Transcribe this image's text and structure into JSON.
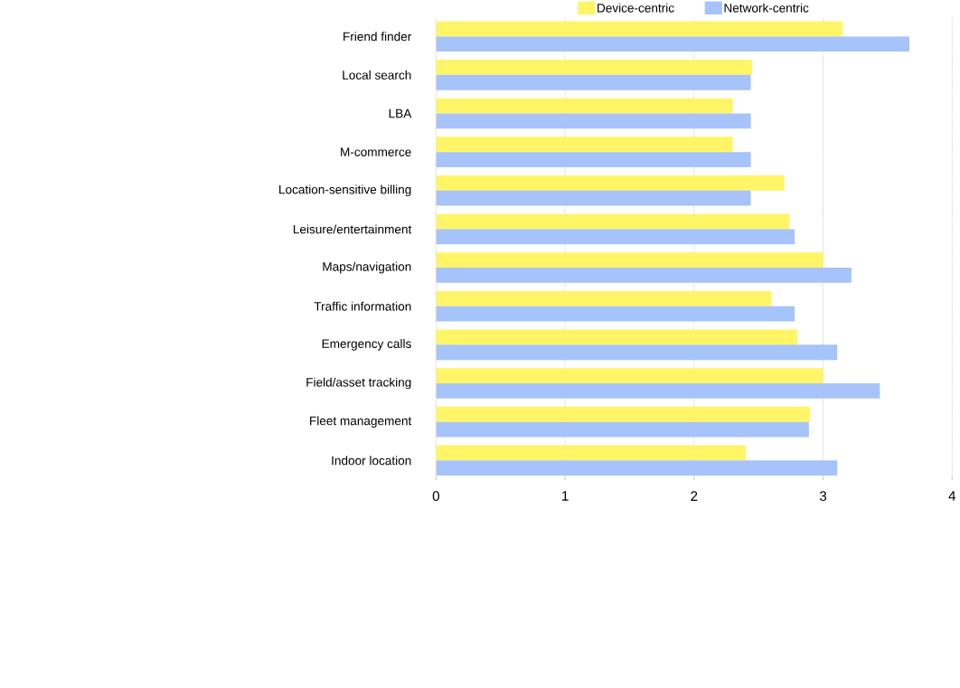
{
  "chart_data": {
    "type": "bar",
    "orientation": "horizontal",
    "categories": [
      "Friend finder",
      "Local search",
      "LBA",
      "M-commerce",
      "Location-sensitive billing",
      "Leisure/entertainment",
      "Maps/navigation",
      "Traffic information",
      "Emergency calls",
      "Field/asset tracking",
      "Fleet management",
      "Indoor location"
    ],
    "series": [
      {
        "name": "Device-centric",
        "color": "#fff566",
        "values": [
          3.15,
          2.45,
          2.3,
          2.3,
          2.7,
          2.74,
          3.0,
          2.6,
          2.8,
          3.0,
          2.9,
          2.4
        ]
      },
      {
        "name": "Network-centric",
        "color": "#a6c4f9",
        "values": [
          3.67,
          2.44,
          2.44,
          2.44,
          2.44,
          2.78,
          3.22,
          2.78,
          3.11,
          3.44,
          2.89,
          3.11
        ]
      }
    ],
    "xlim": [
      0,
      4
    ],
    "xticks": [
      0,
      1,
      2,
      3,
      4
    ],
    "grid": "x",
    "legend": "top"
  }
}
